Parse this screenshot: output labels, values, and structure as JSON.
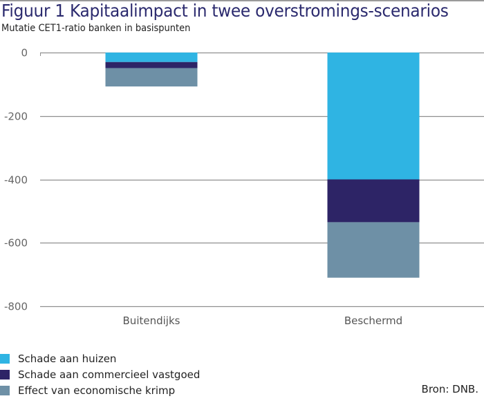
{
  "header": {
    "title": "Figuur 1  Kapitaalimpact in twee overstromings-scenarios",
    "subtitle": "Mutatie CET1-ratio banken in basispunten"
  },
  "source": "Bron: DNB.",
  "chart_data": {
    "type": "bar",
    "stacked": true,
    "title": "Figuur 1  Kapitaalimpact in twee overstromings-scenarios",
    "subtitle": "Mutatie CET1-ratio banken in basispunten",
    "xlabel": "",
    "ylabel": "",
    "categories": [
      "Buitendijks",
      "Beschermd"
    ],
    "ylim": [
      -800,
      0
    ],
    "yticks": [
      0,
      -200,
      -400,
      -600,
      -800
    ],
    "ytick_labels": [
      "0",
      "-200",
      "-400",
      "-600",
      "-800"
    ],
    "grid": true,
    "legend_position": "bottom-left",
    "series": [
      {
        "name": "Schade aan huizen",
        "color": "#2fb4e3",
        "values": [
          -30,
          -400
        ]
      },
      {
        "name": "Schade aan commercieel vastgoed",
        "color": "#2d2466",
        "values": [
          -19,
          -135
        ]
      },
      {
        "name": "Effect van economische krimp",
        "color": "#6e90a6",
        "values": [
          -58,
          -175
        ]
      }
    ]
  }
}
